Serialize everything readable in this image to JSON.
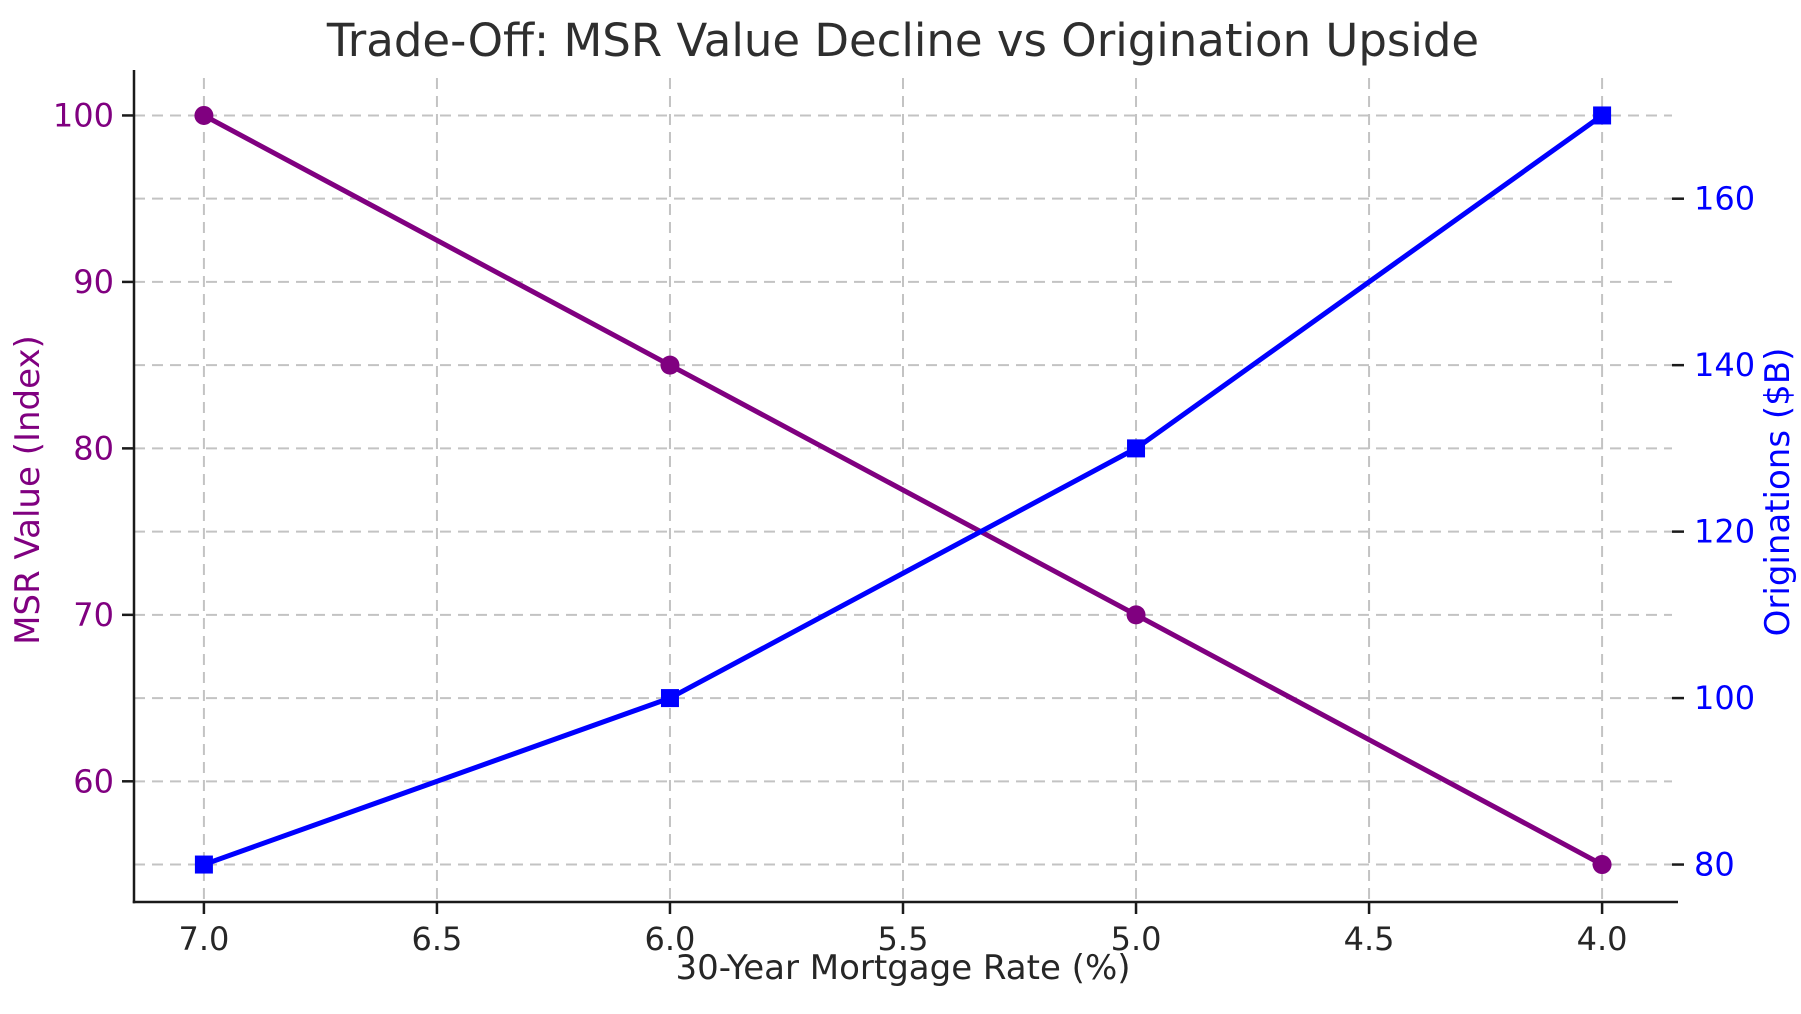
{
  "figure": {
    "background": "#ffffff"
  },
  "chart_data": {
    "type": "line",
    "title": "Trade-Off: MSR Value Decline vs Origination Upside",
    "xlabel": "30-Year Mortgage Rate (%)",
    "x": [
      7.0,
      6.0,
      5.0,
      4.0
    ],
    "x_ticks": [
      "7.0",
      "6.5",
      "6.0",
      "5.5",
      "5.0",
      "4.5",
      "4.0"
    ],
    "x_tick_values": [
      7.0,
      6.5,
      6.0,
      5.5,
      5.0,
      4.5,
      4.0
    ],
    "xlim": [
      7.15,
      3.85
    ],
    "x_inverted": true,
    "grid": true,
    "legend_position": "none",
    "series": [
      {
        "name": "MSR Value (Index)",
        "axis": "left",
        "color": "#800080",
        "marker": "circle",
        "values": [
          100,
          85,
          70,
          55
        ]
      },
      {
        "name": "Originations ($B)",
        "axis": "right",
        "color": "#0000ff",
        "marker": "square",
        "values": [
          80,
          100,
          130,
          170
        ]
      }
    ],
    "left_axis": {
      "label": "MSR Value (Index)",
      "color": "#800080",
      "ticks": [
        60,
        70,
        80,
        90,
        100
      ],
      "ylim": [
        52.75,
        102.25
      ]
    },
    "right_axis": {
      "label": "Originations ($B)",
      "color": "#0000ff",
      "ticks": [
        80,
        100,
        120,
        140,
        160
      ],
      "ylim": [
        75.5,
        174.5
      ]
    },
    "styles": {
      "grid_color": "#c3c3c3",
      "axis_color": "#1a1a1a",
      "tick_label_color": "#262626",
      "title_color": "#2e2e2e"
    }
  }
}
